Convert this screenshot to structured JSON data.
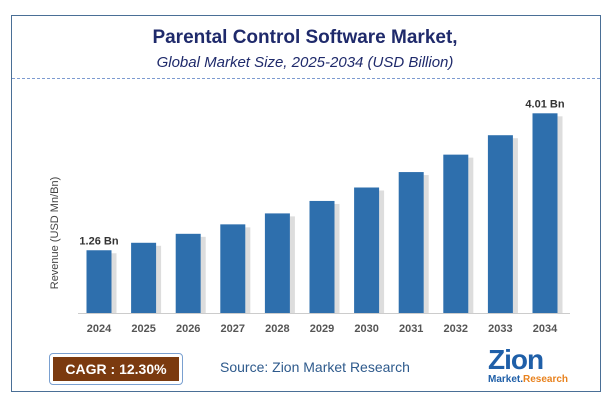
{
  "header": {
    "title": "Parental Control Software Market,",
    "subtitle": "Global Market Size, 2025-2034 (USD Billion)"
  },
  "chart_data": {
    "type": "bar",
    "categories": [
      "2024",
      "2025",
      "2026",
      "2027",
      "2028",
      "2029",
      "2030",
      "2031",
      "2032",
      "2033",
      "2034"
    ],
    "values": [
      1.26,
      1.41,
      1.59,
      1.78,
      2.0,
      2.25,
      2.52,
      2.83,
      3.18,
      3.57,
      4.01
    ],
    "data_labels": {
      "0": "1.26 Bn",
      "10": "4.01 Bn"
    },
    "ylabel": "Revenue (USD Mn/Bn)",
    "ylim": [
      0,
      4.3
    ],
    "grid": false,
    "bar_color": "#2e6fad"
  },
  "footer": {
    "cagr": "CAGR : 12.30%",
    "source": "Source: Zion Market Research",
    "logo_top": "Zion",
    "logo_bottom_1": "Market.",
    "logo_bottom_2": "Research"
  }
}
